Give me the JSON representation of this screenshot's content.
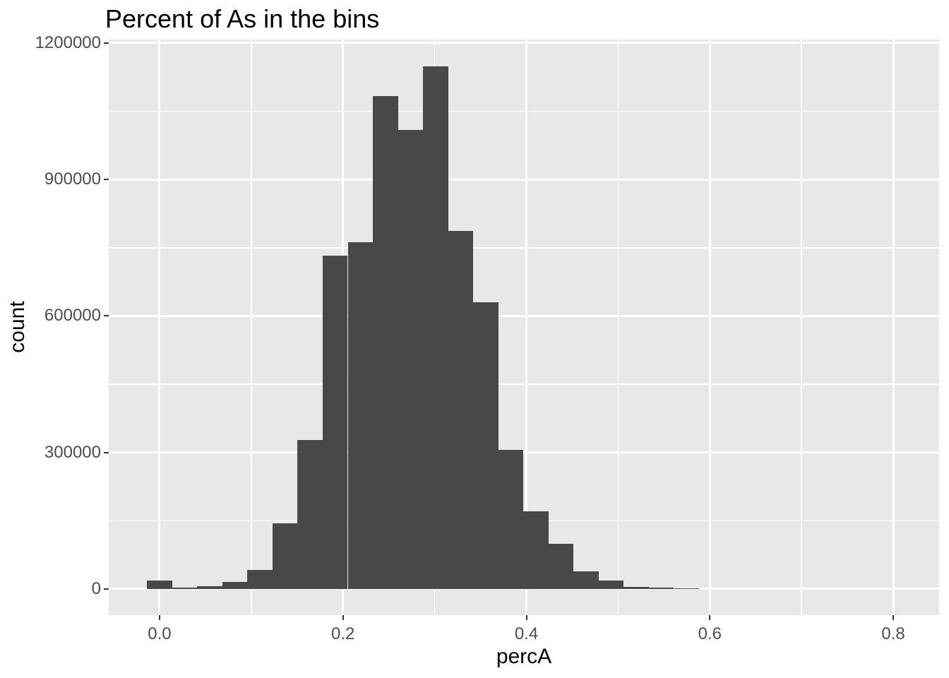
{
  "title": "Percent of As in the bins",
  "axes": {
    "x": {
      "label": "percA",
      "tick_labels": [
        "0.0",
        "0.2",
        "0.4",
        "0.6",
        "0.8"
      ],
      "tick_values": [
        0.0,
        0.2,
        0.4,
        0.6,
        0.8
      ],
      "minor_tick_values": [
        0.1,
        0.3,
        0.5,
        0.7
      ],
      "domain": [
        -0.0554,
        0.85
      ]
    },
    "y": {
      "label": "count",
      "tick_labels": [
        "0",
        "300000",
        "600000",
        "900000",
        "1200000"
      ],
      "tick_values": [
        0,
        300000,
        600000,
        900000,
        1200000
      ],
      "minor_tick_values": [
        150000,
        450000,
        750000,
        1050000
      ],
      "domain": [
        -57500,
        1207500
      ]
    }
  },
  "chart_data": {
    "type": "bar",
    "subtype": "histogram",
    "title": "Percent of As in the bins",
    "xlabel": "percA",
    "ylabel": "count",
    "legend": "none",
    "grid": "on",
    "xlim": [
      -0.0554,
      0.85
    ],
    "ylim": [
      -57500,
      1207500
    ],
    "bin_width": 0.02736,
    "bin_centers": [
      0.0,
      0.0274,
      0.0547,
      0.0821,
      0.1094,
      0.1368,
      0.1642,
      0.1915,
      0.2189,
      0.2462,
      0.2736,
      0.301,
      0.3283,
      0.3557,
      0.383,
      0.4104,
      0.4378,
      0.4651,
      0.4925,
      0.5198,
      0.5472,
      0.5746
    ],
    "counts": [
      18600,
      3100,
      6200,
      15500,
      41900,
      144200,
      327100,
      733300,
      762800,
      1083700,
      1009300,
      1148900,
      787600,
      629500,
      305400,
      170500,
      99200,
      38800,
      18600,
      4700,
      2300,
      1200
    ]
  },
  "colors": {
    "bar_fill": "#484848",
    "panel_background": "#E8E8E8",
    "gridline": "#FFFFFF",
    "axis_text": "#4D4D4D",
    "tick_mark": "#333333",
    "title_text": "#000000",
    "figure_background": "#FFFFFF"
  }
}
